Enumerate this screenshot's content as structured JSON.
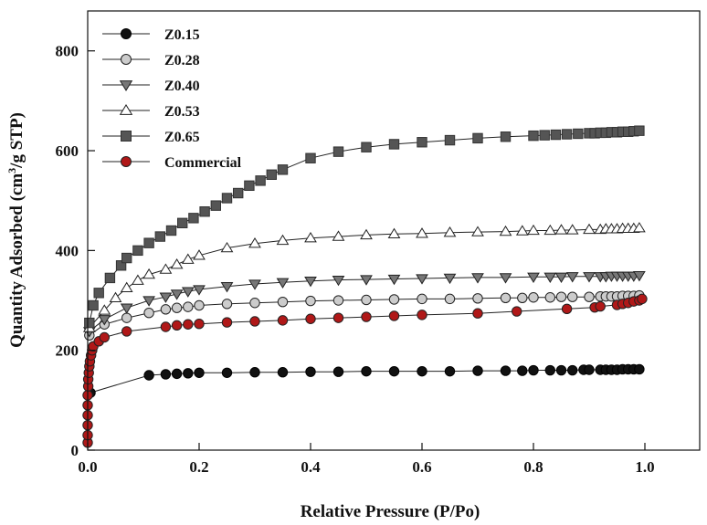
{
  "chart_data": {
    "type": "scatter",
    "title": "",
    "xlabel": "Relative Pressure (P/Po)",
    "ylabel_main": "Quantity Adsorbed (cm",
    "ylabel_sup": "3",
    "ylabel_tail": "/g STP)",
    "xlim": [
      0,
      1.1
    ],
    "ylim": [
      0,
      880
    ],
    "xticks": [
      {
        "value": 0.0,
        "label": "0.0"
      },
      {
        "value": 0.2,
        "label": "0.2"
      },
      {
        "value": 0.4,
        "label": "0.4"
      },
      {
        "value": 0.6,
        "label": "0.6"
      },
      {
        "value": 0.8,
        "label": "0.8"
      },
      {
        "value": 1.0,
        "label": "1.0"
      }
    ],
    "yticks": [
      {
        "value": 0,
        "label": "0"
      },
      {
        "value": 200,
        "label": "200"
      },
      {
        "value": 400,
        "label": "400"
      },
      {
        "value": 600,
        "label": "600"
      },
      {
        "value": 800,
        "label": "800"
      }
    ],
    "grid": false,
    "legend_position": "top-left",
    "series": [
      {
        "name": "Z0.15",
        "marker": "circle",
        "fill": "#111111",
        "stroke": "#000000",
        "points": [
          [
            0.005,
            115
          ],
          [
            0.11,
            150
          ],
          [
            0.14,
            152
          ],
          [
            0.16,
            153
          ],
          [
            0.18,
            154
          ],
          [
            0.2,
            155
          ],
          [
            0.25,
            155
          ],
          [
            0.3,
            156
          ],
          [
            0.35,
            156
          ],
          [
            0.4,
            157
          ],
          [
            0.45,
            157
          ],
          [
            0.5,
            158
          ],
          [
            0.55,
            158
          ],
          [
            0.6,
            158
          ],
          [
            0.65,
            158
          ],
          [
            0.7,
            159
          ],
          [
            0.75,
            159
          ],
          [
            0.78,
            159
          ],
          [
            0.8,
            160
          ],
          [
            0.83,
            160
          ],
          [
            0.85,
            160
          ],
          [
            0.87,
            160
          ],
          [
            0.89,
            161
          ],
          [
            0.9,
            161
          ],
          [
            0.92,
            161
          ],
          [
            0.93,
            161
          ],
          [
            0.94,
            161
          ],
          [
            0.95,
            161
          ],
          [
            0.96,
            162
          ],
          [
            0.97,
            162
          ],
          [
            0.98,
            162
          ],
          [
            0.99,
            162
          ]
        ]
      },
      {
        "name": "Z0.28",
        "marker": "circle",
        "fill": "#cccccc",
        "stroke": "#222222",
        "points": [
          [
            0.003,
            230
          ],
          [
            0.03,
            252
          ],
          [
            0.07,
            265
          ],
          [
            0.11,
            275
          ],
          [
            0.14,
            282
          ],
          [
            0.16,
            285
          ],
          [
            0.18,
            287
          ],
          [
            0.2,
            290
          ],
          [
            0.25,
            293
          ],
          [
            0.3,
            295
          ],
          [
            0.35,
            297
          ],
          [
            0.4,
            299
          ],
          [
            0.45,
            300
          ],
          [
            0.5,
            301
          ],
          [
            0.55,
            302
          ],
          [
            0.6,
            303
          ],
          [
            0.65,
            303
          ],
          [
            0.7,
            304
          ],
          [
            0.75,
            305
          ],
          [
            0.78,
            305
          ],
          [
            0.8,
            306
          ],
          [
            0.83,
            306
          ],
          [
            0.85,
            307
          ],
          [
            0.87,
            307
          ],
          [
            0.9,
            307
          ],
          [
            0.92,
            308
          ],
          [
            0.93,
            308
          ],
          [
            0.94,
            308
          ],
          [
            0.95,
            308
          ],
          [
            0.96,
            309
          ],
          [
            0.97,
            309
          ],
          [
            0.98,
            309
          ],
          [
            0.99,
            310
          ]
        ]
      },
      {
        "name": "Z0.40",
        "marker": "triangle-down",
        "fill": "#777777",
        "stroke": "#222222",
        "points": [
          [
            0.003,
            238
          ],
          [
            0.03,
            262
          ],
          [
            0.07,
            285
          ],
          [
            0.11,
            300
          ],
          [
            0.14,
            307
          ],
          [
            0.16,
            313
          ],
          [
            0.18,
            318
          ],
          [
            0.2,
            322
          ],
          [
            0.25,
            328
          ],
          [
            0.3,
            333
          ],
          [
            0.35,
            336
          ],
          [
            0.4,
            339
          ],
          [
            0.45,
            341
          ],
          [
            0.5,
            342
          ],
          [
            0.55,
            343
          ],
          [
            0.6,
            344
          ],
          [
            0.65,
            345
          ],
          [
            0.7,
            346
          ],
          [
            0.75,
            346
          ],
          [
            0.8,
            347
          ],
          [
            0.83,
            347
          ],
          [
            0.85,
            347
          ],
          [
            0.87,
            348
          ],
          [
            0.9,
            348
          ],
          [
            0.92,
            348
          ],
          [
            0.93,
            348
          ],
          [
            0.94,
            349
          ],
          [
            0.95,
            349
          ],
          [
            0.96,
            349
          ],
          [
            0.97,
            349
          ],
          [
            0.98,
            349
          ],
          [
            0.99,
            350
          ]
        ]
      },
      {
        "name": "Z0.53",
        "marker": "triangle-up",
        "fill": "#ffffff",
        "stroke": "#222222",
        "points": [
          [
            0.003,
            245
          ],
          [
            0.03,
            280
          ],
          [
            0.05,
            305
          ],
          [
            0.07,
            325
          ],
          [
            0.09,
            340
          ],
          [
            0.11,
            352
          ],
          [
            0.14,
            362
          ],
          [
            0.16,
            372
          ],
          [
            0.18,
            382
          ],
          [
            0.2,
            390
          ],
          [
            0.25,
            405
          ],
          [
            0.3,
            414
          ],
          [
            0.35,
            420
          ],
          [
            0.4,
            425
          ],
          [
            0.45,
            428
          ],
          [
            0.5,
            431
          ],
          [
            0.55,
            433
          ],
          [
            0.6,
            434
          ],
          [
            0.65,
            436
          ],
          [
            0.7,
            437
          ],
          [
            0.75,
            438
          ],
          [
            0.78,
            439
          ],
          [
            0.8,
            440
          ],
          [
            0.83,
            440
          ],
          [
            0.85,
            441
          ],
          [
            0.87,
            441
          ],
          [
            0.9,
            442
          ],
          [
            0.92,
            442
          ],
          [
            0.93,
            443
          ],
          [
            0.94,
            443
          ],
          [
            0.95,
            443
          ],
          [
            0.96,
            444
          ],
          [
            0.97,
            444
          ],
          [
            0.98,
            444
          ],
          [
            0.99,
            445
          ]
        ]
      },
      {
        "name": "Z0.65",
        "marker": "square",
        "fill": "#555555",
        "stroke": "#333333",
        "points": [
          [
            0.003,
            255
          ],
          [
            0.01,
            290
          ],
          [
            0.02,
            315
          ],
          [
            0.04,
            345
          ],
          [
            0.06,
            370
          ],
          [
            0.07,
            385
          ],
          [
            0.09,
            400
          ],
          [
            0.11,
            415
          ],
          [
            0.13,
            428
          ],
          [
            0.15,
            440
          ],
          [
            0.17,
            455
          ],
          [
            0.19,
            465
          ],
          [
            0.21,
            478
          ],
          [
            0.23,
            490
          ],
          [
            0.25,
            505
          ],
          [
            0.27,
            515
          ],
          [
            0.29,
            530
          ],
          [
            0.31,
            540
          ],
          [
            0.33,
            552
          ],
          [
            0.35,
            562
          ],
          [
            0.4,
            585
          ],
          [
            0.45,
            598
          ],
          [
            0.5,
            607
          ],
          [
            0.55,
            613
          ],
          [
            0.6,
            617
          ],
          [
            0.65,
            621
          ],
          [
            0.7,
            625
          ],
          [
            0.75,
            628
          ],
          [
            0.8,
            630
          ],
          [
            0.82,
            631
          ],
          [
            0.84,
            632
          ],
          [
            0.86,
            633
          ],
          [
            0.88,
            634
          ],
          [
            0.9,
            635
          ],
          [
            0.91,
            635
          ],
          [
            0.92,
            636
          ],
          [
            0.93,
            636
          ],
          [
            0.94,
            637
          ],
          [
            0.95,
            637
          ],
          [
            0.96,
            638
          ],
          [
            0.97,
            638
          ],
          [
            0.98,
            639
          ],
          [
            0.99,
            640
          ]
        ]
      },
      {
        "name": "Commercial",
        "marker": "circle",
        "fill": "#b01818",
        "stroke": "#222222",
        "points": [
          [
            0.0,
            15
          ],
          [
            0.0,
            30
          ],
          [
            0.0,
            50
          ],
          [
            0.0,
            70
          ],
          [
            0.0,
            90
          ],
          [
            0.0,
            110
          ],
          [
            0.001,
            128
          ],
          [
            0.001,
            142
          ],
          [
            0.002,
            155
          ],
          [
            0.003,
            168
          ],
          [
            0.004,
            178
          ],
          [
            0.006,
            190
          ],
          [
            0.008,
            200
          ],
          [
            0.01,
            208
          ],
          [
            0.02,
            218
          ],
          [
            0.03,
            226
          ],
          [
            0.07,
            238
          ],
          [
            0.14,
            247
          ],
          [
            0.16,
            250
          ],
          [
            0.18,
            252
          ],
          [
            0.2,
            253
          ],
          [
            0.25,
            256
          ],
          [
            0.3,
            258
          ],
          [
            0.35,
            260
          ],
          [
            0.4,
            263
          ],
          [
            0.45,
            265
          ],
          [
            0.5,
            267
          ],
          [
            0.55,
            269
          ],
          [
            0.6,
            271
          ],
          [
            0.7,
            274
          ],
          [
            0.77,
            278
          ],
          [
            0.86,
            283
          ],
          [
            0.91,
            286
          ],
          [
            0.92,
            288
          ],
          [
            0.95,
            291
          ],
          [
            0.96,
            293
          ],
          [
            0.97,
            295
          ],
          [
            0.98,
            298
          ],
          [
            0.99,
            300
          ],
          [
            0.995,
            303
          ]
        ]
      }
    ]
  }
}
